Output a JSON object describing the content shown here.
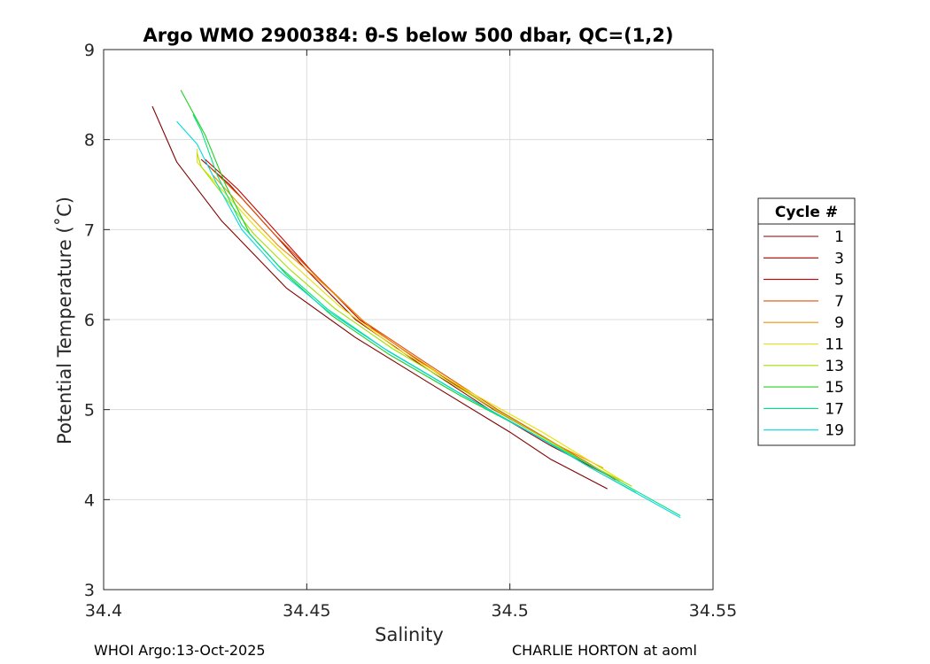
{
  "chart_data": {
    "type": "line",
    "title": "Argo WMO 2900384: θ-S below 500 dbar,  QC=(1,2)",
    "xlabel": "Salinity",
    "ylabel": "Potential Temperature (˚C)",
    "xlim": [
      34.4,
      34.55
    ],
    "ylim": [
      3,
      9
    ],
    "xticks": [
      "34.4",
      "34.45",
      "34.5",
      "34.55"
    ],
    "yticks": [
      "3",
      "4",
      "5",
      "6",
      "7",
      "8",
      "9"
    ],
    "xtick_values": [
      34.4,
      34.45,
      34.5,
      34.55
    ],
    "ytick_values": [
      3,
      4,
      5,
      6,
      7,
      8,
      9
    ],
    "grid": true,
    "legend": {
      "title": "Cycle #",
      "placement": "right"
    },
    "series": [
      {
        "name": "1",
        "color": "#800000",
        "points": [
          [
            34.412,
            8.37
          ],
          [
            34.418,
            7.75
          ],
          [
            34.429,
            7.1
          ],
          [
            34.445,
            6.35
          ],
          [
            34.462,
            5.8
          ],
          [
            34.48,
            5.3
          ],
          [
            34.5,
            4.75
          ],
          [
            34.51,
            4.45
          ],
          [
            34.524,
            4.12
          ]
        ]
      },
      {
        "name": "3",
        "color": "#a00000",
        "points": [
          [
            34.424,
            7.78
          ],
          [
            34.431,
            7.5
          ],
          [
            34.44,
            7.05
          ],
          [
            34.45,
            6.55
          ],
          [
            34.462,
            6.0
          ],
          [
            34.478,
            5.5
          ],
          [
            34.495,
            5.0
          ],
          [
            34.51,
            4.6
          ],
          [
            34.525,
            4.25
          ]
        ]
      },
      {
        "name": "5",
        "color": "#cc0000",
        "points": [
          [
            34.425,
            7.78
          ],
          [
            34.433,
            7.45
          ],
          [
            34.441,
            7.05
          ],
          [
            34.451,
            6.55
          ],
          [
            34.463,
            6.0
          ],
          [
            34.479,
            5.5
          ],
          [
            34.496,
            5.0
          ],
          [
            34.511,
            4.62
          ],
          [
            34.526,
            4.22
          ]
        ]
      },
      {
        "name": "7",
        "color": "#e05000",
        "points": [
          [
            34.426,
            7.7
          ],
          [
            34.434,
            7.35
          ],
          [
            34.442,
            6.95
          ],
          [
            34.452,
            6.5
          ],
          [
            34.464,
            5.98
          ],
          [
            34.48,
            5.5
          ],
          [
            34.497,
            5.0
          ],
          [
            34.512,
            4.6
          ],
          [
            34.527,
            4.2
          ]
        ]
      },
      {
        "name": "9",
        "color": "#ee9000",
        "points": [
          [
            34.427,
            7.6
          ],
          [
            34.435,
            7.2
          ],
          [
            34.443,
            6.82
          ],
          [
            34.454,
            6.4
          ],
          [
            34.466,
            5.9
          ],
          [
            34.482,
            5.42
          ],
          [
            34.498,
            4.95
          ],
          [
            34.512,
            4.6
          ],
          [
            34.523,
            4.35
          ]
        ]
      },
      {
        "name": "11",
        "color": "#e8e000",
        "points": [
          [
            34.423,
            7.9
          ],
          [
            34.423,
            7.75
          ],
          [
            34.43,
            7.4
          ],
          [
            34.438,
            7.0
          ],
          [
            34.447,
            6.6
          ],
          [
            34.458,
            6.15
          ],
          [
            34.472,
            5.68
          ],
          [
            34.49,
            5.2
          ],
          [
            34.508,
            4.75
          ],
          [
            34.52,
            4.42
          ],
          [
            34.528,
            4.2
          ]
        ]
      },
      {
        "name": "13",
        "color": "#a0e000",
        "points": [
          [
            34.423,
            7.85
          ],
          [
            34.424,
            7.7
          ],
          [
            34.43,
            7.35
          ],
          [
            34.437,
            6.95
          ],
          [
            34.446,
            6.55
          ],
          [
            34.457,
            6.12
          ],
          [
            34.471,
            5.68
          ],
          [
            34.489,
            5.2
          ],
          [
            34.507,
            4.72
          ],
          [
            34.52,
            4.38
          ],
          [
            34.53,
            4.15
          ]
        ]
      },
      {
        "name": "15",
        "color": "#20d020",
        "points": [
          [
            34.419,
            8.55
          ],
          [
            34.425,
            8.05
          ],
          [
            34.43,
            7.5
          ],
          [
            34.436,
            6.95
          ],
          [
            34.445,
            6.5
          ],
          [
            34.456,
            6.05
          ],
          [
            34.47,
            5.62
          ],
          [
            34.488,
            5.15
          ],
          [
            34.507,
            4.7
          ],
          [
            34.52,
            4.35
          ],
          [
            34.531,
            4.08
          ]
        ]
      },
      {
        "name": "17",
        "color": "#00e080",
        "points": [
          [
            34.422,
            8.28
          ],
          [
            34.424,
            8.1
          ],
          [
            34.428,
            7.6
          ],
          [
            34.434,
            7.05
          ],
          [
            34.443,
            6.6
          ],
          [
            34.455,
            6.12
          ],
          [
            34.469,
            5.68
          ],
          [
            34.487,
            5.2
          ],
          [
            34.505,
            4.75
          ],
          [
            34.521,
            4.35
          ],
          [
            34.542,
            3.82
          ]
        ]
      },
      {
        "name": "19",
        "color": "#00d8e0",
        "points": [
          [
            34.418,
            8.2
          ],
          [
            34.423,
            7.95
          ],
          [
            34.428,
            7.5
          ],
          [
            34.434,
            7.0
          ],
          [
            34.443,
            6.55
          ],
          [
            34.455,
            6.1
          ],
          [
            34.47,
            5.65
          ],
          [
            34.488,
            5.17
          ],
          [
            34.506,
            4.72
          ],
          [
            34.522,
            4.3
          ],
          [
            34.542,
            3.8
          ]
        ]
      }
    ]
  },
  "footer": {
    "left": "WHOI Argo:13-Oct-2025",
    "right": "CHARLIE HORTON at aoml"
  }
}
